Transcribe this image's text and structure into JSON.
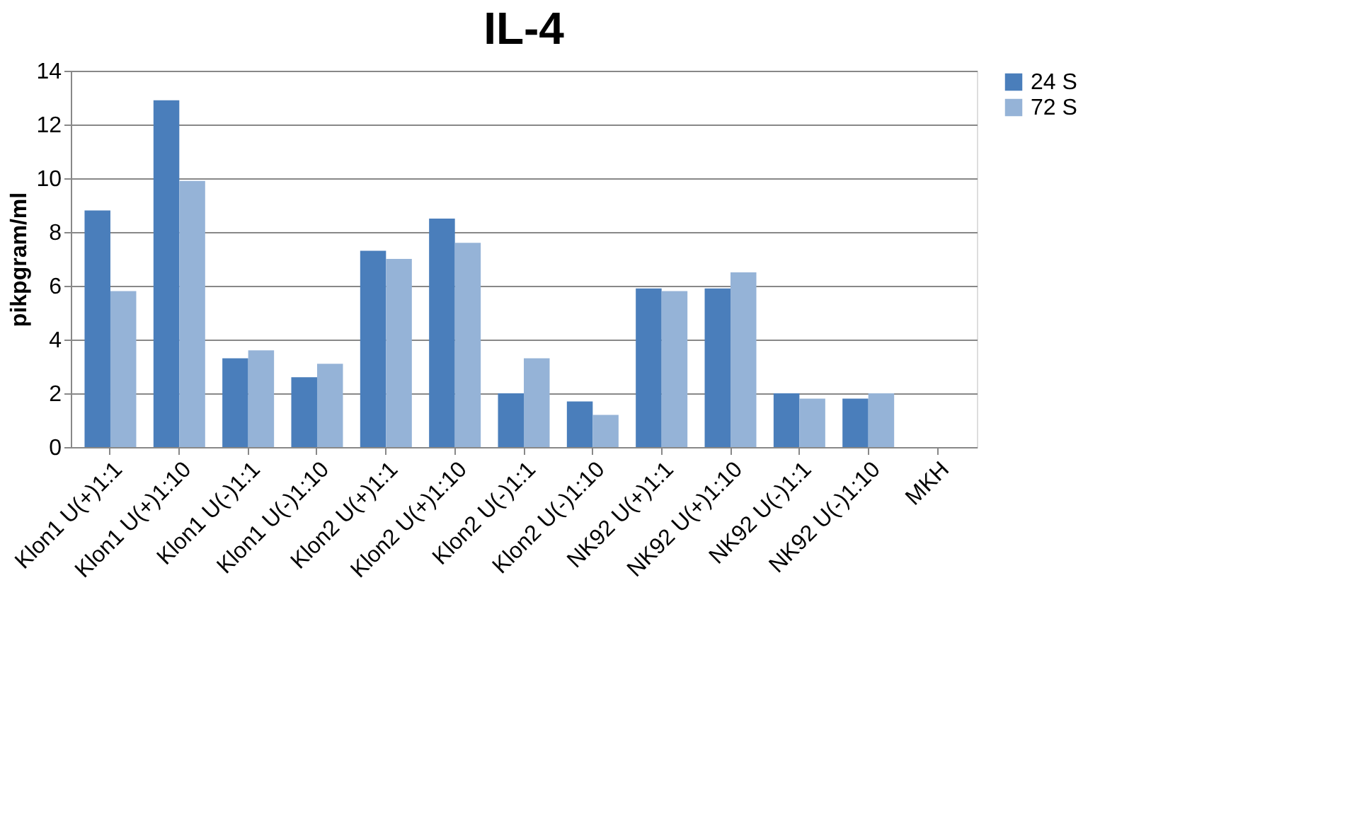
{
  "chart_data": {
    "type": "bar",
    "title": "IL-4",
    "ylabel": "pikpgram/ml",
    "categories": [
      "Klon1 U(+)1:1",
      "Klon1 U(+)1:10",
      "Klon1 U(-)1:1",
      "Klon1 U(-)1:10",
      "Klon2 U(+)1:1",
      "Klon2 U(+)1:10",
      "Klon2 U(-)1:1",
      "Klon2 U(-)1:10",
      "NK92 U(+)1:1",
      "NK92 U(+)1:10",
      "NK92 U(-)1:1",
      "NK92 U(-)1:10",
      "MKH"
    ],
    "series": [
      {
        "name": "24 S",
        "color": "#4a7ebb",
        "values": [
          8.8,
          12.9,
          3.3,
          2.6,
          7.3,
          8.5,
          2.0,
          1.7,
          5.9,
          5.9,
          2.0,
          1.8,
          0
        ]
      },
      {
        "name": "72 S",
        "color": "#95b3d7",
        "values": [
          5.8,
          9.9,
          3.6,
          3.1,
          7.0,
          7.6,
          3.3,
          1.2,
          5.8,
          6.5,
          1.8,
          2.0,
          0
        ]
      }
    ],
    "ylim": [
      0,
      14
    ],
    "yticks": [
      0,
      2,
      4,
      6,
      8,
      10,
      12,
      14
    ],
    "grid": "y",
    "legend": "right"
  }
}
